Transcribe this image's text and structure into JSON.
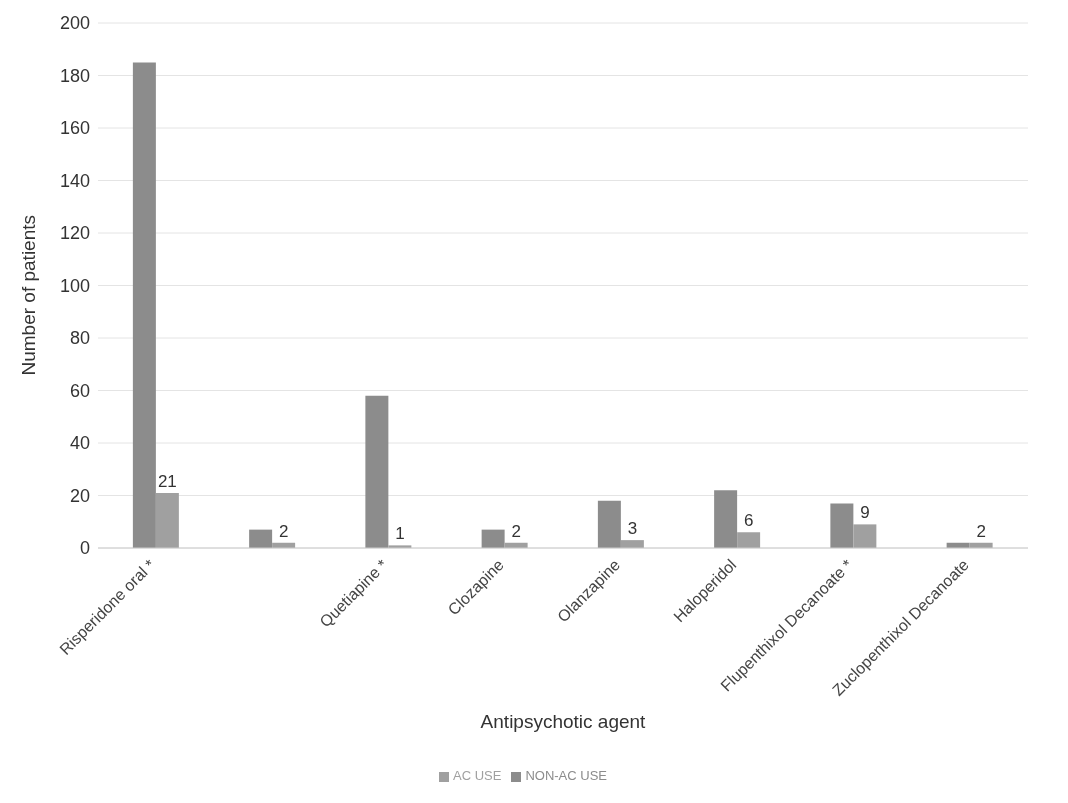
{
  "chart_data": {
    "type": "bar",
    "xlabel": "Antipsychotic agent",
    "ylabel": "Number of patients",
    "categories": [
      "Risperidone oral *",
      null,
      "Quetiapine *",
      "Clozapine",
      "Olanzapine",
      "Haloperidol",
      "Flupenthixol Decanoate *",
      "Zuclopenthixol Decanoate"
    ],
    "series": [
      {
        "name": "NON-AC USE",
        "color": "#8c8c8c",
        "values": [
          185,
          7,
          58,
          7,
          18,
          22,
          17,
          2
        ]
      },
      {
        "name": "AC USE",
        "color": "#a0a0a0",
        "values": [
          21,
          2,
          1,
          2,
          3,
          6,
          9,
          2
        ],
        "value_labels": [
          "21",
          "2",
          "1",
          "2",
          "3",
          "6",
          "9",
          "2"
        ]
      }
    ],
    "ylim": [
      0,
      200
    ],
    "yticks": [
      0,
      20,
      40,
      60,
      80,
      100,
      120,
      140,
      160,
      180,
      200
    ],
    "grid": "y",
    "legend": "bottom"
  }
}
